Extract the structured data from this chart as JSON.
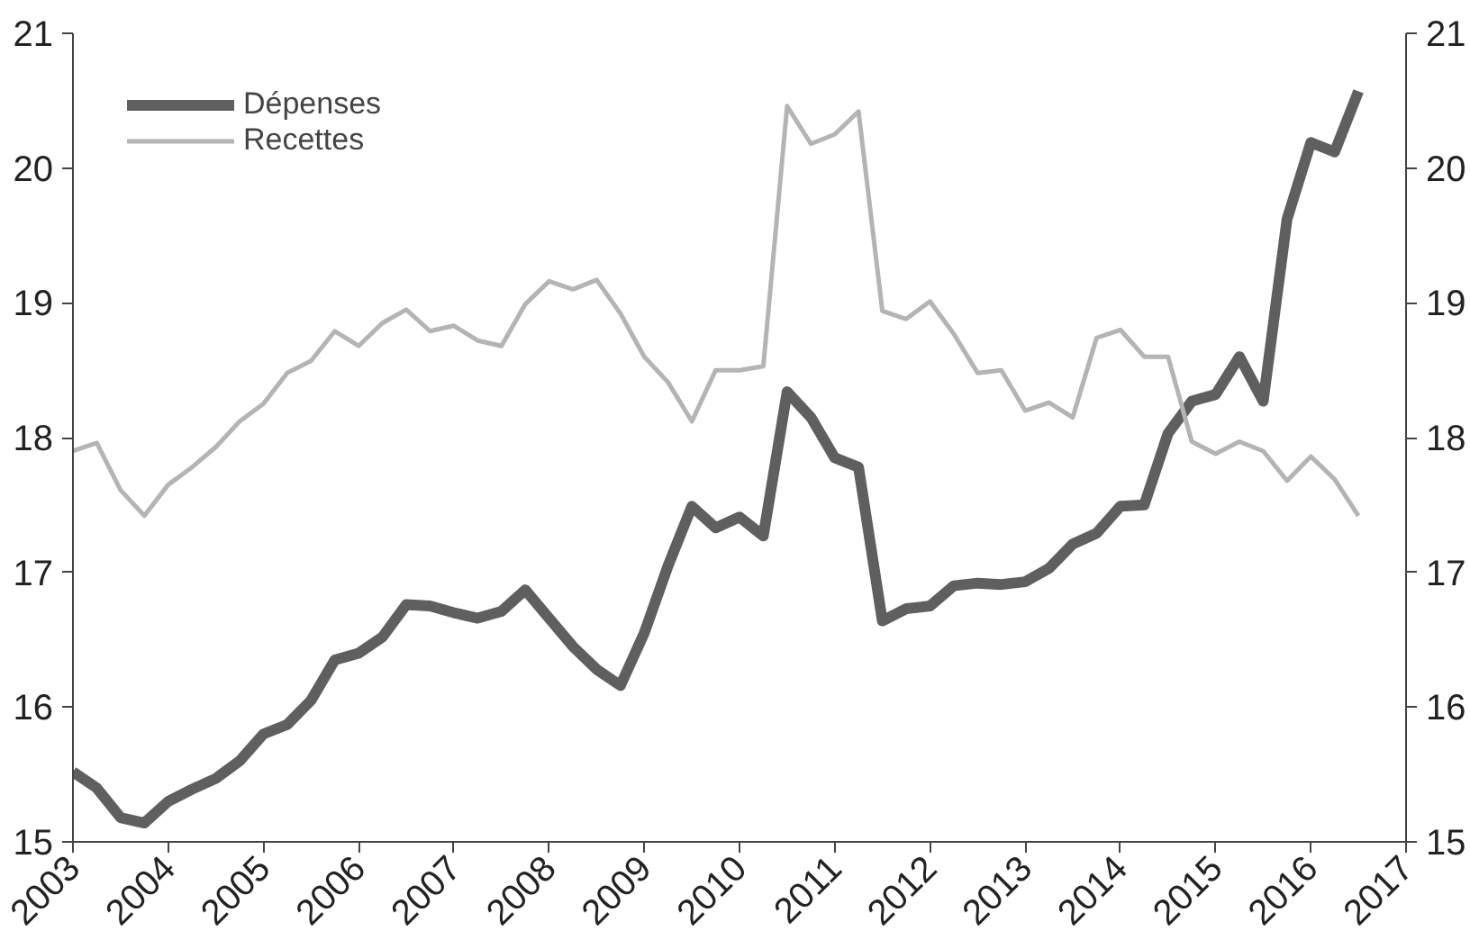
{
  "chart_data": {
    "type": "line",
    "x": [
      2003.0,
      2003.25,
      2003.5,
      2003.75,
      2004.0,
      2004.25,
      2004.5,
      2004.75,
      2005.0,
      2005.25,
      2005.5,
      2005.75,
      2006.0,
      2006.25,
      2006.5,
      2006.75,
      2007.0,
      2007.25,
      2007.5,
      2007.75,
      2008.0,
      2008.25,
      2008.5,
      2008.75,
      2009.0,
      2009.25,
      2009.5,
      2009.75,
      2010.0,
      2010.25,
      2010.5,
      2010.75,
      2011.0,
      2011.25,
      2011.5,
      2011.75,
      2012.0,
      2012.25,
      2012.5,
      2012.75,
      2013.0,
      2013.25,
      2013.5,
      2013.75,
      2014.0,
      2014.25,
      2014.5,
      2014.75,
      2015.0,
      2015.25,
      2015.5,
      2015.75,
      2016.0,
      2016.25,
      2016.5
    ],
    "series": [
      {
        "name": "Dépenses",
        "color": "#5f5f5f",
        "values": [
          15.52,
          15.4,
          15.18,
          15.14,
          15.3,
          15.39,
          15.47,
          15.6,
          15.8,
          15.87,
          16.05,
          16.35,
          16.4,
          16.52,
          16.76,
          16.75,
          16.7,
          16.66,
          16.71,
          16.87,
          16.66,
          16.45,
          16.28,
          16.16,
          16.55,
          17.05,
          17.49,
          17.33,
          17.41,
          17.27,
          18.34,
          18.15,
          17.85,
          17.78,
          16.64,
          16.73,
          16.75,
          16.9,
          16.92,
          16.91,
          16.93,
          17.03,
          17.21,
          17.29,
          17.49,
          17.5,
          18.03,
          18.27,
          18.32,
          18.6,
          18.27,
          19.62,
          20.19,
          20.12,
          20.57
        ]
      },
      {
        "name": "Recettes",
        "color": "#b4b4b4",
        "values": [
          17.9,
          17.96,
          17.61,
          17.42,
          17.65,
          17.78,
          17.93,
          18.12,
          18.25,
          18.48,
          18.57,
          18.79,
          18.68,
          18.85,
          18.95,
          18.79,
          18.83,
          18.72,
          18.68,
          18.99,
          19.16,
          19.1,
          19.17,
          18.92,
          18.6,
          18.41,
          18.12,
          18.5,
          18.5,
          18.53,
          20.46,
          20.18,
          20.25,
          20.42,
          18.94,
          18.88,
          19.01,
          18.77,
          18.48,
          18.5,
          18.2,
          18.26,
          18.15,
          18.74,
          18.8,
          18.6,
          18.6,
          17.97,
          17.88,
          17.97,
          17.9,
          17.68,
          17.86,
          17.69,
          17.42
        ]
      }
    ],
    "xlim": [
      2003,
      2017
    ],
    "xticks": [
      2003,
      2004,
      2005,
      2006,
      2007,
      2008,
      2009,
      2010,
      2011,
      2012,
      2013,
      2014,
      2015,
      2016,
      2017
    ],
    "ylim": [
      15,
      21
    ],
    "yticks": [
      15,
      16,
      17,
      18,
      19,
      20,
      21
    ],
    "y2lim": [
      15,
      21
    ],
    "y2ticks": [
      15,
      16,
      17,
      18,
      19,
      20,
      21
    ],
    "legend": "top left",
    "grid": false,
    "marker": "none",
    "line_style": "solid"
  }
}
